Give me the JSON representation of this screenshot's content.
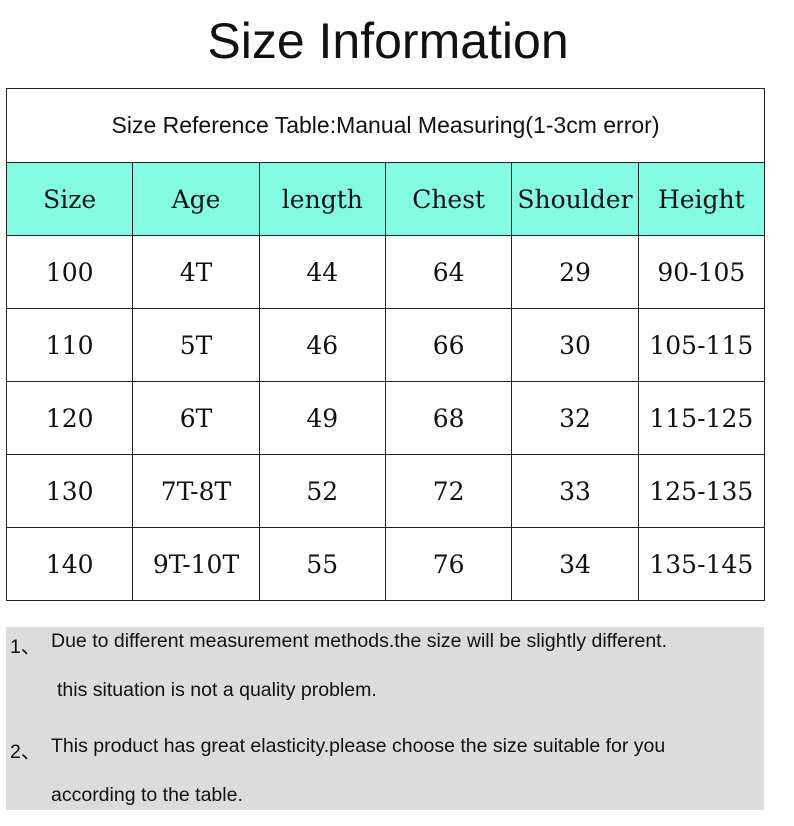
{
  "title": "Size Information",
  "caption": "Size Reference Table:Manual Measuring(1-3cm error)",
  "headers": [
    "Size",
    "Age",
    "length",
    "Chest",
    "Shoulder",
    "Height"
  ],
  "rows": [
    [
      "100",
      "4T",
      "44",
      "64",
      "29",
      "90-105"
    ],
    [
      "110",
      "5T",
      "46",
      "66",
      "30",
      "105-115"
    ],
    [
      "120",
      "6T",
      "49",
      "68",
      "32",
      "115-125"
    ],
    [
      "130",
      "7T-8T",
      "52",
      "72",
      "33",
      "125-135"
    ],
    [
      "140",
      "9T-10T",
      "55",
      "76",
      "34",
      "135-145"
    ]
  ],
  "header_color": "#84fce4",
  "notes": [
    {
      "num": "1、",
      "line1": "Due to different measurement methods.the size will be slightly different.",
      "line2": "this situation is not a quality problem."
    },
    {
      "num": "2、",
      "line1": "This product has great elasticity.please choose the size suitable for you",
      "line2": "according to the table."
    }
  ]
}
